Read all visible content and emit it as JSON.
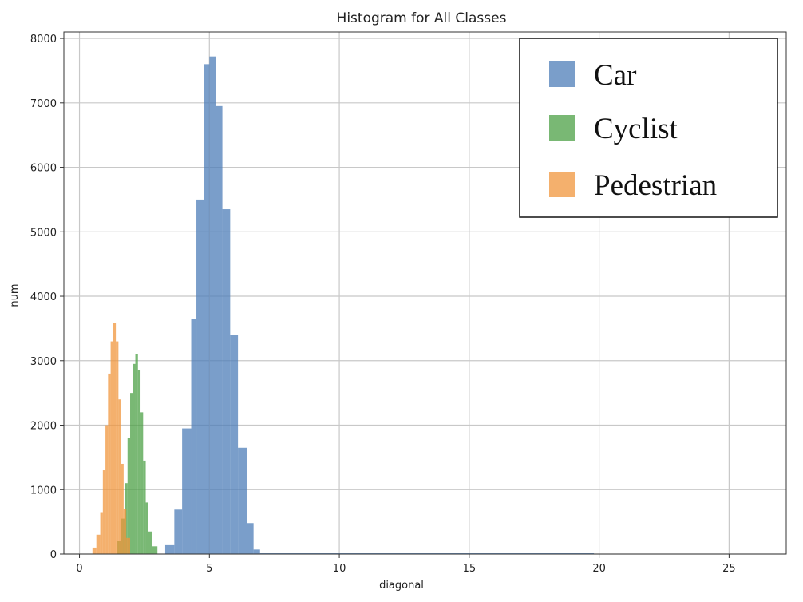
{
  "chart_data": {
    "type": "bar",
    "title": "Histogram for All Classes",
    "xlabel": "diagonal",
    "ylabel": "num",
    "xlim": [
      -0.6,
      27.2
    ],
    "ylim": [
      0,
      8100
    ],
    "xticks": [
      0,
      5,
      10,
      15,
      20,
      25
    ],
    "yticks": [
      0,
      1000,
      2000,
      3000,
      4000,
      5000,
      6000,
      7000,
      8000
    ],
    "grid": true,
    "legend_position": "top-right",
    "bar_opacity": 0.75,
    "series": [
      {
        "name": "Car",
        "color": "#4d7eb8",
        "bins": [
          {
            "x0": 3.3,
            "x1": 3.65,
            "count": 150
          },
          {
            "x0": 3.65,
            "x1": 3.95,
            "count": 690
          },
          {
            "x0": 3.95,
            "x1": 4.3,
            "count": 1950
          },
          {
            "x0": 4.3,
            "x1": 4.5,
            "count": 3650
          },
          {
            "x0": 4.5,
            "x1": 4.8,
            "count": 5500
          },
          {
            "x0": 4.8,
            "x1": 5.0,
            "count": 7600
          },
          {
            "x0": 5.0,
            "x1": 5.25,
            "count": 7720
          },
          {
            "x0": 5.25,
            "x1": 5.5,
            "count": 6950
          },
          {
            "x0": 5.5,
            "x1": 5.8,
            "count": 5350
          },
          {
            "x0": 5.8,
            "x1": 6.1,
            "count": 3400
          },
          {
            "x0": 6.1,
            "x1": 6.45,
            "count": 1650
          },
          {
            "x0": 6.45,
            "x1": 6.7,
            "count": 480
          },
          {
            "x0": 6.7,
            "x1": 6.95,
            "count": 70
          },
          {
            "x0": 6.95,
            "x1": 19.8,
            "count": 8
          }
        ]
      },
      {
        "name": "Cyclist",
        "color": "#4ca046",
        "bins": [
          {
            "x0": 1.45,
            "x1": 1.6,
            "count": 200
          },
          {
            "x0": 1.6,
            "x1": 1.75,
            "count": 550
          },
          {
            "x0": 1.75,
            "x1": 1.85,
            "count": 1100
          },
          {
            "x0": 1.85,
            "x1": 1.95,
            "count": 1800
          },
          {
            "x0": 1.95,
            "x1": 2.05,
            "count": 2500
          },
          {
            "x0": 2.05,
            "x1": 2.15,
            "count": 2950
          },
          {
            "x0": 2.15,
            "x1": 2.25,
            "count": 3100
          },
          {
            "x0": 2.25,
            "x1": 2.35,
            "count": 2850
          },
          {
            "x0": 2.35,
            "x1": 2.45,
            "count": 2200
          },
          {
            "x0": 2.45,
            "x1": 2.55,
            "count": 1450
          },
          {
            "x0": 2.55,
            "x1": 2.65,
            "count": 800
          },
          {
            "x0": 2.65,
            "x1": 2.8,
            "count": 350
          },
          {
            "x0": 2.8,
            "x1": 3.0,
            "count": 120
          }
        ]
      },
      {
        "name": "Pedestrian",
        "color": "#f0963c",
        "bins": [
          {
            "x0": 0.5,
            "x1": 0.65,
            "count": 100
          },
          {
            "x0": 0.65,
            "x1": 0.8,
            "count": 300
          },
          {
            "x0": 0.8,
            "x1": 0.9,
            "count": 650
          },
          {
            "x0": 0.9,
            "x1": 1.0,
            "count": 1300
          },
          {
            "x0": 1.0,
            "x1": 1.1,
            "count": 2000
          },
          {
            "x0": 1.1,
            "x1": 1.2,
            "count": 2800
          },
          {
            "x0": 1.2,
            "x1": 1.3,
            "count": 3300
          },
          {
            "x0": 1.3,
            "x1": 1.4,
            "count": 3580
          },
          {
            "x0": 1.4,
            "x1": 1.5,
            "count": 3300
          },
          {
            "x0": 1.5,
            "x1": 1.6,
            "count": 2400
          },
          {
            "x0": 1.6,
            "x1": 1.7,
            "count": 1400
          },
          {
            "x0": 1.7,
            "x1": 1.8,
            "count": 700
          },
          {
            "x0": 1.8,
            "x1": 1.95,
            "count": 250
          }
        ]
      }
    ]
  },
  "legend": {
    "items": [
      {
        "label": "Car",
        "color": "#4d7eb8"
      },
      {
        "label": "Cyclist",
        "color": "#4ca046"
      },
      {
        "label": "Pedestrian",
        "color": "#f0963c"
      }
    ]
  }
}
